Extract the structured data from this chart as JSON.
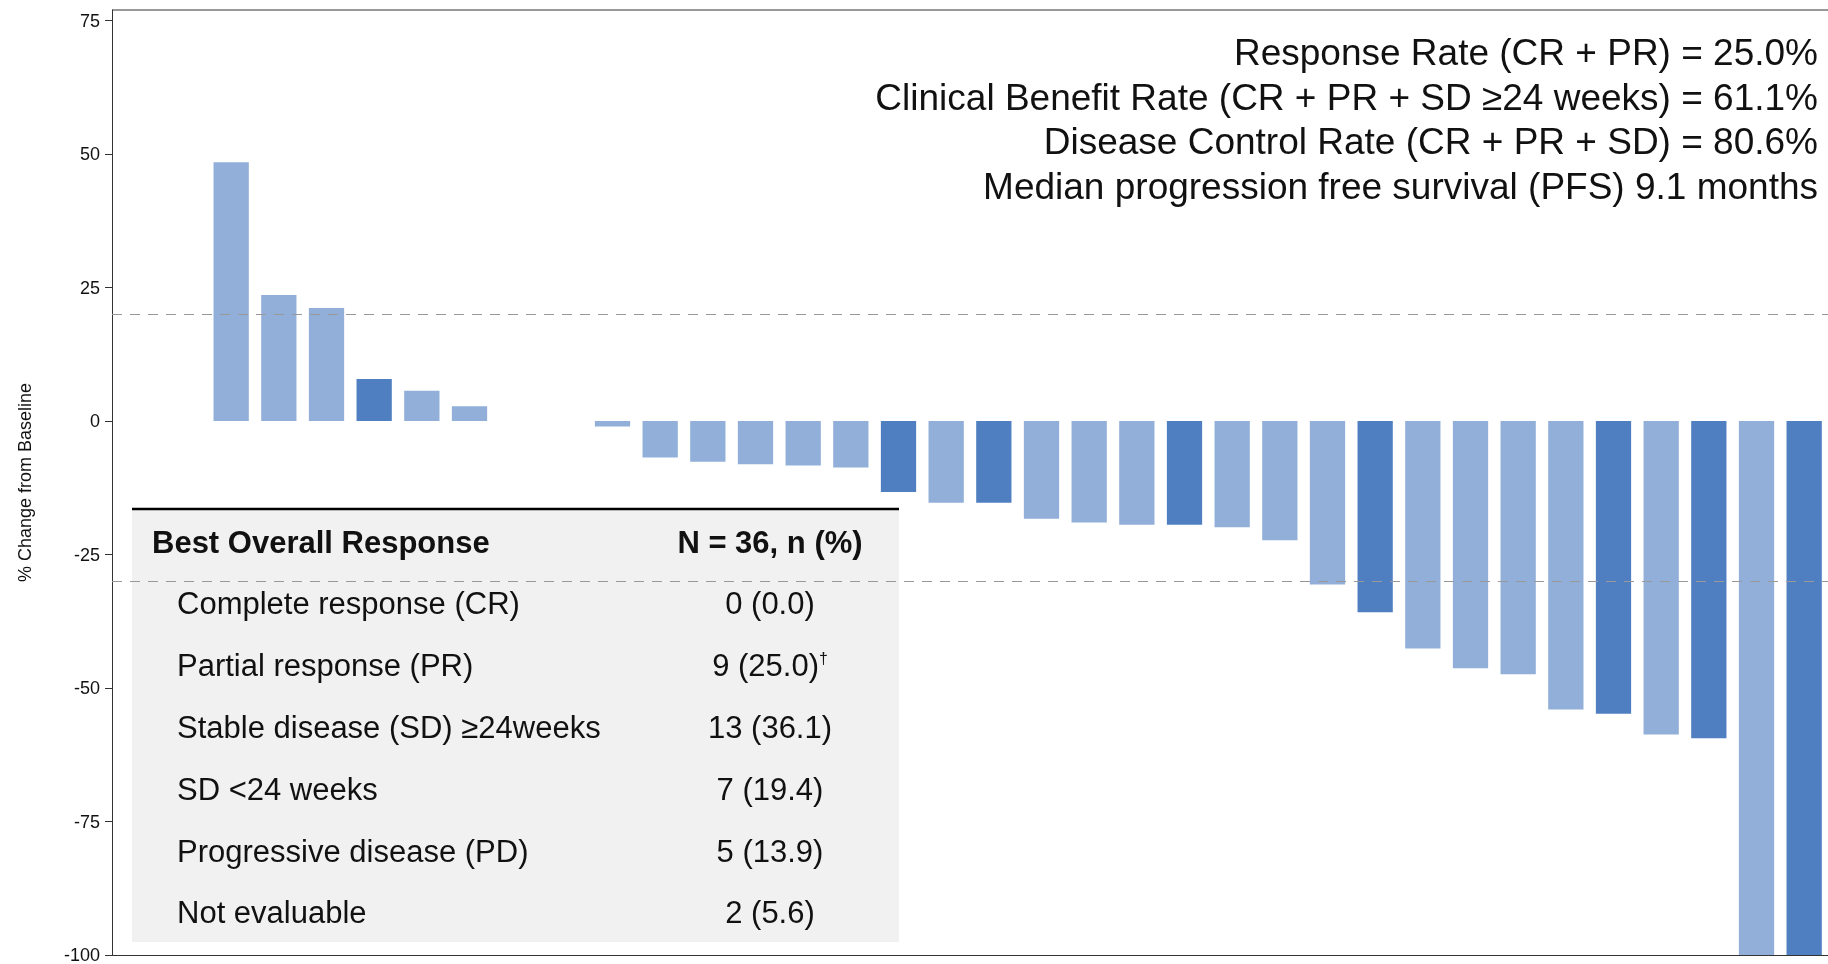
{
  "chart_data": {
    "type": "bar",
    "ylabel": "% Change from Baseline",
    "categories": [
      null,
      null,
      null,
      null,
      null,
      null,
      null,
      null,
      null,
      null,
      null,
      null,
      null,
      null,
      null,
      null,
      null,
      null,
      null,
      null,
      null,
      null,
      null,
      null,
      null,
      null,
      null,
      null,
      null,
      null,
      null,
      null,
      null,
      null,
      null,
      null
    ],
    "values": [
      0,
      0,
      48.5,
      23.6,
      21.2,
      7.9,
      5.7,
      2.8,
      0,
      0,
      -1,
      -6.8,
      -7.6,
      -8.1,
      -8.3,
      -8.7,
      -13.3,
      -15.3,
      -15.3,
      -18.3,
      -19,
      -19.4,
      -19.4,
      -19.9,
      -22.3,
      -30.6,
      -35.8,
      -42.6,
      -46.3,
      -47.4,
      -54,
      -54.8,
      -58.7,
      -59.4,
      -100,
      -100
    ],
    "colors": [
      "#4f7fc1",
      "#91afd8",
      "#91afd8",
      "#91afd8",
      "#91afd8",
      "#4f7fc1",
      "#91afd8",
      "#91afd8",
      "#4f7fc1",
      "#91afd8",
      "#91afd8",
      "#91afd8",
      "#91afd8",
      "#91afd8",
      "#91afd8",
      "#91afd8",
      "#4f7fc1",
      "#91afd8",
      "#4f7fc1",
      "#91afd8",
      "#91afd8",
      "#91afd8",
      "#4f7fc1",
      "#91afd8",
      "#91afd8",
      "#91afd8",
      "#4f7fc1",
      "#91afd8",
      "#91afd8",
      "#91afd8",
      "#91afd8",
      "#4f7fc1",
      "#91afd8",
      "#4f7fc1",
      "#91afd8",
      "#4f7fc1"
    ],
    "ylim": [
      -100,
      77
    ],
    "yticks": [
      -100,
      -75,
      -50,
      -25,
      0,
      25,
      50,
      75
    ],
    "tick_labels": "y",
    "ref_lines": [
      {
        "axis": "y",
        "value": 20,
        "color": "#999999",
        "line_style": "dashed"
      },
      {
        "axis": "y",
        "value": -30,
        "color": "#999999",
        "line_style": "dashed"
      }
    ],
    "annotations": [
      "Response Rate (CR + PR) = 25.0%",
      "Clinical Benefit Rate (CR + PR + SD ≥24 weeks) = 61.1%",
      "Disease Control Rate (CR + PR + SD) = 80.6%",
      "Median progression free survival (PFS) 9.1 months",
      "Best Overall Response",
      "N = 36, n (%)",
      "Complete response (CR)",
      "0 (0.0)",
      "Partial response (PR)",
      "9 (25.0)$^{†}$",
      "Stable disease (SD) ≥24weeks",
      "13 (36.1)",
      "SD <24 weeks",
      "7 (19.4)",
      "Progressive disease (PD)",
      "5 (13.9)",
      "Not evaluable",
      "2 (5.6)"
    ]
  }
}
